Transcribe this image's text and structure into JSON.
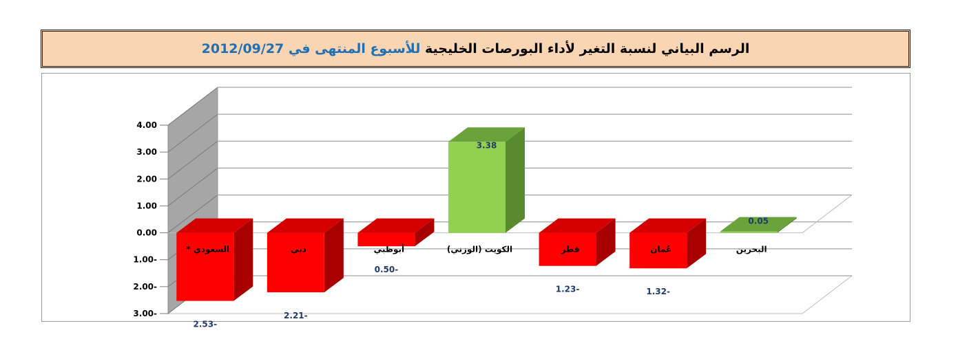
{
  "title": {
    "main": "الرسم البياني لنسبة التغير لأداء البورصات الخليجية",
    "accent": "للأسبوع المنتهى في 2012/09/27"
  },
  "chart_data": {
    "type": "bar",
    "style": "3d-column",
    "categories": [
      "السعودي *",
      "دبي",
      "أبوظبي",
      "الكويت (الوزني)",
      "قطر",
      "عُمان",
      "البحرين"
    ],
    "values": [
      -2.53,
      -2.21,
      -0.5,
      3.38,
      -1.23,
      -1.32,
      0.05
    ],
    "value_labels": [
      "2.53-",
      "2.21-",
      "0.50-",
      "3.38",
      "1.23-",
      "1.32-",
      "0.05"
    ],
    "ylim": [
      -3,
      4
    ],
    "y_ticks": [
      4,
      3,
      2,
      1,
      0,
      -1,
      -2,
      -3
    ],
    "y_tick_labels": [
      "4.00",
      "3.00",
      "2.00",
      "1.00",
      "0.00",
      "1.00-",
      "2.00-",
      "3.00-"
    ],
    "grid": true,
    "colors": {
      "negative_front": "#ff0000",
      "negative_top": "#d40000",
      "negative_side": "#a80000",
      "positive_front": "#92d050",
      "positive_top": "#6aa33a",
      "positive_side": "#5a8a2e",
      "wall": "#a6a6a6",
      "grid": "#8c8c8c",
      "label": "#1f3a6b"
    }
  }
}
